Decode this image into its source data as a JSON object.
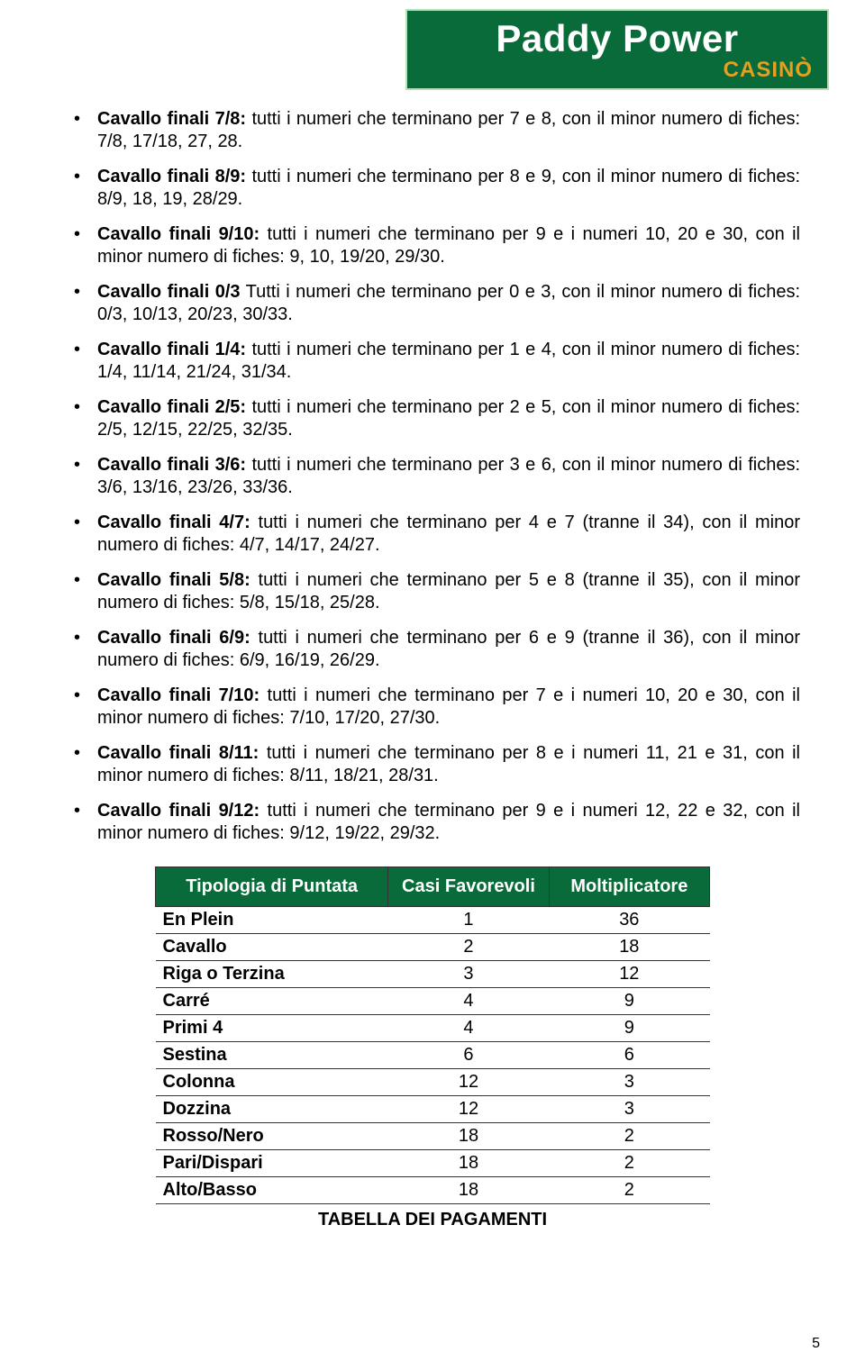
{
  "logo": {
    "main": "Paddy Power",
    "sub": "CASINÒ",
    "bg_color": "#0a6b3a",
    "border_color": "#b7e0b7",
    "main_color": "#ffffff",
    "sub_color": "#e5a020"
  },
  "bullets": [
    {
      "label": "Cavallo finali 7/8:",
      "text": " tutti i numeri che terminano per 7 e 8, con il minor numero di fiches: 7/8, 17/18, 27, 28."
    },
    {
      "label": "Cavallo finali 8/9:",
      "text": " tutti i numeri che terminano per 8 e 9, con il minor numero di fiches: 8/9, 18, 19, 28/29."
    },
    {
      "label": "Cavallo finali 9/10:",
      "text": " tutti i numeri che terminano per 9 e i numeri 10, 20 e 30, con il minor numero di fiches: 9, 10, 19/20, 29/30."
    },
    {
      "label": "Cavallo finali 0/3",
      "text": " Tutti i numeri che terminano per 0 e 3, con il minor numero di fiches: 0/3, 10/13, 20/23, 30/33."
    },
    {
      "label": "Cavallo finali 1/4:",
      "text": " tutti i numeri che terminano per 1 e 4, con il minor numero di fiches: 1/4, 11/14, 21/24, 31/34."
    },
    {
      "label": "Cavallo finali 2/5:",
      "text": " tutti i numeri che terminano per 2 e 5, con il minor numero di fiches: 2/5, 12/15, 22/25, 32/35."
    },
    {
      "label": "Cavallo finali 3/6:",
      "text": " tutti i numeri che terminano per 3 e 6, con il minor numero di fiches: 3/6, 13/16, 23/26, 33/36."
    },
    {
      "label": "Cavallo finali 4/7:",
      "text": " tutti i numeri che terminano per 4 e 7 (tranne il 34), con il minor numero di fiches: 4/7, 14/17, 24/27."
    },
    {
      "label": "Cavallo finali 5/8:",
      "text": " tutti i numeri che terminano per 5 e 8 (tranne il 35), con il minor numero di fiches: 5/8, 15/18, 25/28."
    },
    {
      "label": "Cavallo finali 6/9:",
      "text": " tutti i numeri che terminano per 6 e 9 (tranne il 36), con il minor numero di fiches: 6/9, 16/19, 26/29."
    },
    {
      "label": "Cavallo finali 7/10:",
      "text": " tutti i numeri che terminano per 7 e i numeri 10, 20 e 30, con il minor numero di fiches: 7/10, 17/20, 27/30."
    },
    {
      "label": "Cavallo finali 8/11:",
      "text": " tutti i numeri che terminano per 8 e i numeri 11, 21 e 31, con il minor numero di fiches: 8/11, 18/21, 28/31."
    },
    {
      "label": "Cavallo finali 9/12:",
      "text": " tutti i numeri che terminano per 9 e i numeri 12, 22 e 32, con il minor numero di fiches: 9/12, 19/22, 29/32."
    }
  ],
  "table": {
    "header_bg": "#0a6b3a",
    "header_fg": "#ffffff",
    "border_color": "#333333",
    "columns": [
      "Tipologia di Puntata",
      "Casi Favorevoli",
      "Moltiplicatore"
    ],
    "rows": [
      [
        "En Plein",
        "1",
        "36"
      ],
      [
        "Cavallo",
        "2",
        "18"
      ],
      [
        "Riga o Terzina",
        "3",
        "12"
      ],
      [
        "Carré",
        "4",
        "9"
      ],
      [
        "Primi 4",
        "4",
        "9"
      ],
      [
        "Sestina",
        "6",
        "6"
      ],
      [
        "Colonna",
        "12",
        "3"
      ],
      [
        "Dozzina",
        "12",
        "3"
      ],
      [
        "Rosso/Nero",
        "18",
        "2"
      ],
      [
        "Pari/Dispari",
        "18",
        "2"
      ],
      [
        "Alto/Basso",
        "18",
        "2"
      ]
    ],
    "caption": "TABELLA DEI PAGAMENTI"
  },
  "page_number": "5"
}
